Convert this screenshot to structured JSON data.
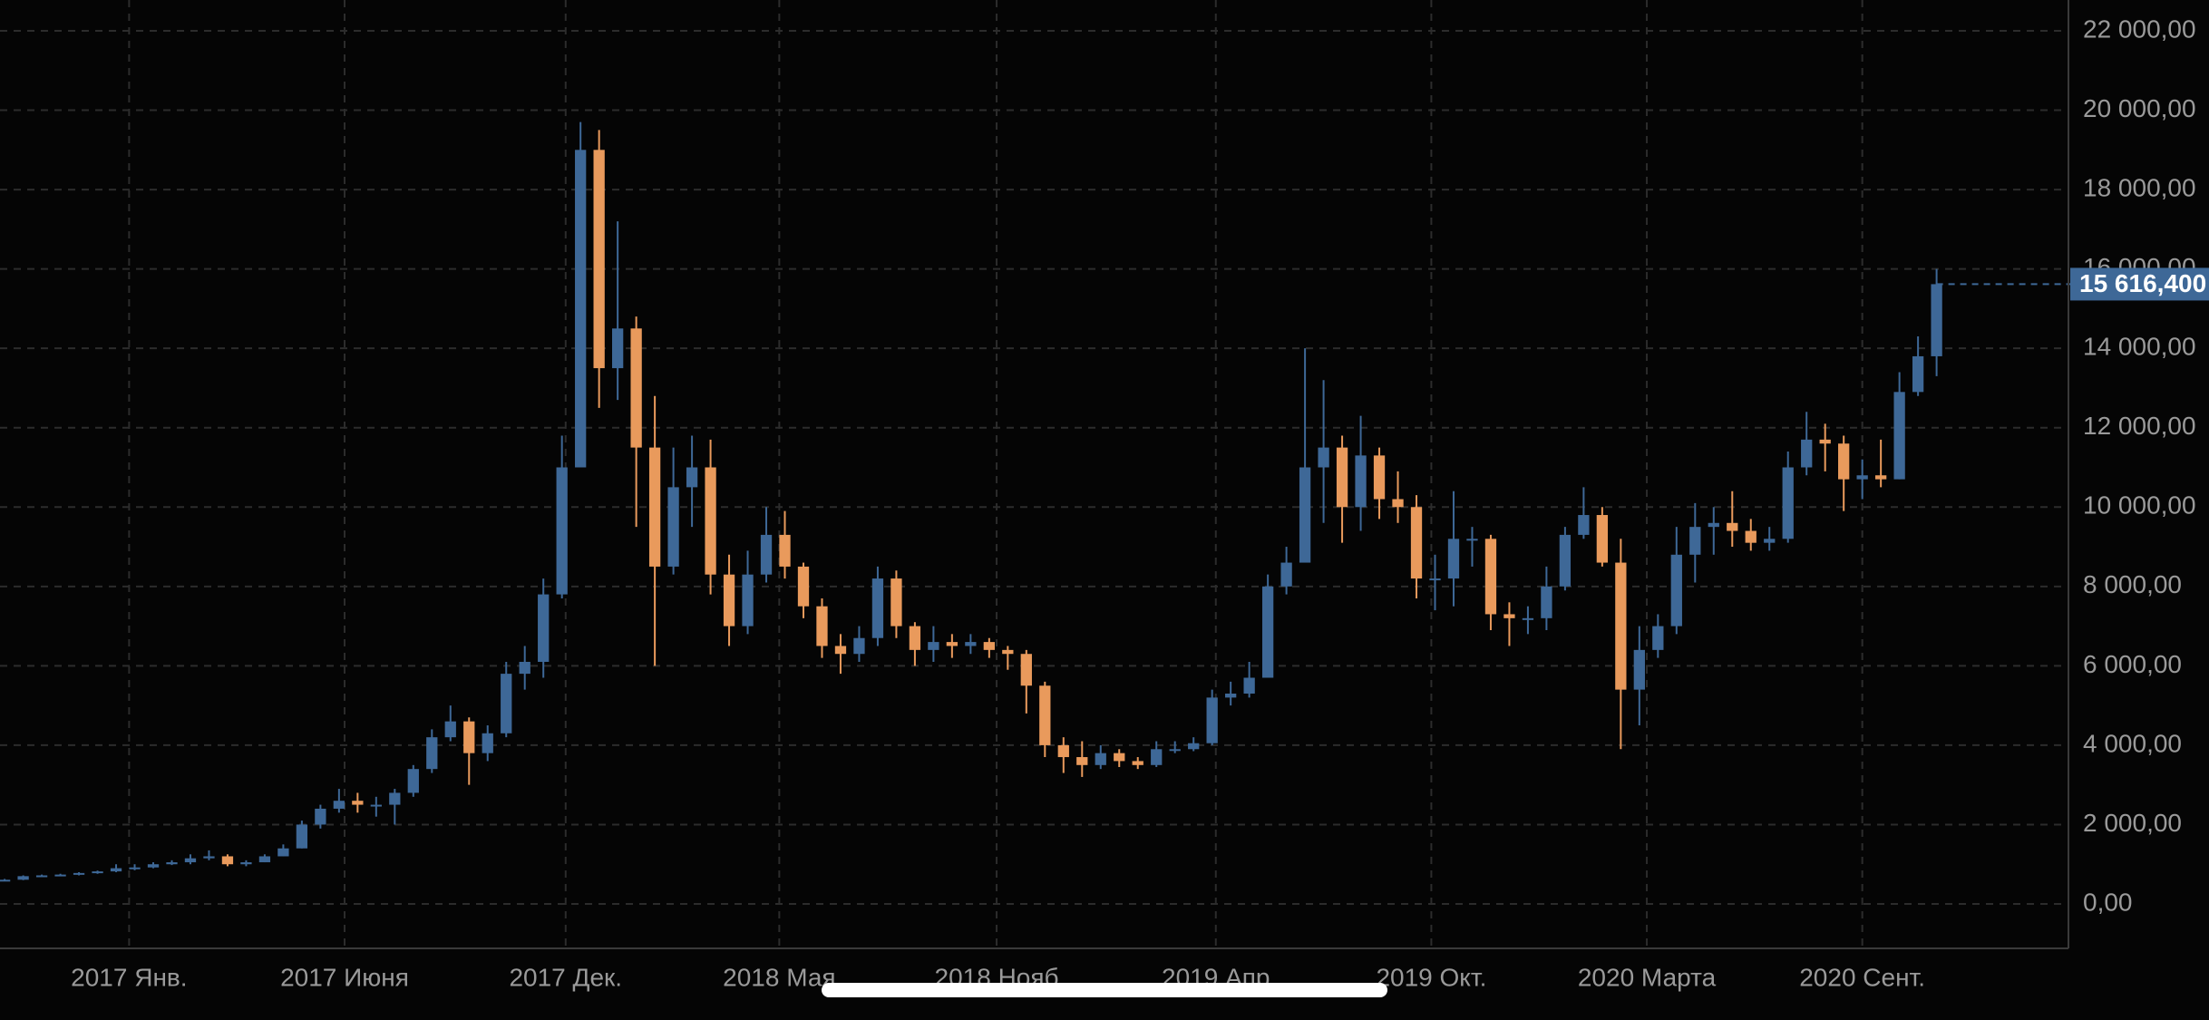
{
  "chart_data": {
    "type": "candlestick",
    "open": [
      590,
      610,
      700,
      720,
      740,
      780,
      820,
      900,
      920,
      1000,
      1050,
      1150,
      1200,
      1000,
      1050,
      1200,
      1400,
      2000,
      2400,
      2600,
      2500,
      2500,
      2800,
      3400,
      4200,
      4600,
      3800,
      4300,
      5800,
      6100,
      7800,
      11000,
      19000,
      13500,
      14500,
      11500,
      8500,
      10500,
      11000,
      8300,
      7000,
      8300,
      9300,
      8500,
      7500,
      6500,
      6300,
      6700,
      8200,
      7000,
      6400,
      6600,
      6500,
      6600,
      6400,
      6300,
      5500,
      4000,
      3700,
      3500,
      3800,
      3600,
      3500,
      3900,
      3900,
      4050,
      5200,
      5300,
      5700,
      8000,
      8600,
      11000,
      11500,
      10000,
      11300,
      10200,
      10000,
      8200,
      8200,
      9200,
      9200,
      7300,
      7200,
      7200,
      8000,
      9300,
      9800,
      8600,
      5400,
      6400,
      7000,
      8800,
      9500,
      9600,
      9400,
      9100,
      9200,
      11000,
      11700,
      11600,
      10700,
      10800,
      10700,
      12900,
      13800
    ],
    "high": [
      630,
      720,
      740,
      760,
      800,
      840,
      1000,
      1000,
      1050,
      1100,
      1250,
      1350,
      1250,
      1100,
      1250,
      1500,
      2100,
      2500,
      2900,
      2800,
      2700,
      2900,
      3500,
      4400,
      5000,
      4700,
      4500,
      6100,
      6500,
      8200,
      11800,
      19700,
      19500,
      17200,
      14800,
      12800,
      11500,
      11800,
      11700,
      8800,
      8900,
      10000,
      9900,
      8600,
      7700,
      6800,
      7000,
      8500,
      8400,
      7100,
      7000,
      6800,
      6800,
      6700,
      6500,
      6400,
      5600,
      4200,
      4100,
      4000,
      3900,
      3700,
      4100,
      4100,
      4200,
      5400,
      5600,
      6100,
      8300,
      9000,
      14000,
      13200,
      11800,
      12300,
      11500,
      10900,
      10300,
      8800,
      10400,
      9500,
      9300,
      7600,
      7500,
      8500,
      9500,
      10500,
      10000,
      9200,
      7000,
      7300,
      9500,
      10100,
      10000,
      10400,
      9700,
      9500,
      11400,
      12400,
      12100,
      11800,
      11200,
      11700,
      13400,
      14300,
      16000
    ],
    "low": [
      580,
      600,
      690,
      700,
      720,
      760,
      800,
      850,
      900,
      980,
      1000,
      1100,
      950,
      950,
      1050,
      1200,
      1400,
      1900,
      2300,
      2300,
      2200,
      2000,
      2700,
      3300,
      4100,
      3000,
      3600,
      4200,
      5400,
      5700,
      7700,
      11000,
      12500,
      12700,
      9500,
      6000,
      8300,
      9500,
      7800,
      6500,
      6800,
      8100,
      8200,
      7200,
      6200,
      5800,
      6100,
      6500,
      6700,
      6000,
      6100,
      6200,
      6300,
      6200,
      5900,
      4800,
      3700,
      3300,
      3200,
      3400,
      3450,
      3400,
      3450,
      3800,
      3850,
      4000,
      5000,
      5200,
      5700,
      7800,
      8600,
      9600,
      9100,
      9400,
      9700,
      9600,
      7700,
      7400,
      7500,
      8500,
      6900,
      6500,
      6800,
      6900,
      7900,
      9200,
      8500,
      3900,
      4500,
      6200,
      6800,
      8100,
      8800,
      9000,
      8900,
      8900,
      9100,
      10800,
      10900,
      9900,
      10200,
      10500,
      10700,
      12800,
      13300
    ],
    "close": [
      610,
      700,
      720,
      740,
      780,
      820,
      900,
      920,
      1000,
      1050,
      1150,
      1200,
      1000,
      1050,
      1200,
      1400,
      2000,
      2400,
      2600,
      2500,
      2500,
      2800,
      3400,
      4200,
      4600,
      3800,
      4300,
      5800,
      6100,
      7800,
      11000,
      19000,
      13500,
      14500,
      11500,
      8500,
      10500,
      11000,
      8300,
      7000,
      8300,
      9300,
      8500,
      7500,
      6500,
      6300,
      6700,
      8200,
      7000,
      6400,
      6600,
      6500,
      6600,
      6400,
      6300,
      5500,
      4000,
      3700,
      3500,
      3800,
      3600,
      3500,
      3900,
      3900,
      4050,
      5200,
      5300,
      5700,
      8000,
      8600,
      11000,
      11500,
      10000,
      11300,
      10200,
      10000,
      8200,
      8200,
      9200,
      9200,
      7300,
      7200,
      7200,
      8000,
      9300,
      9800,
      8600,
      5400,
      6400,
      7000,
      8800,
      9500,
      9600,
      9400,
      9100,
      9200,
      11000,
      11700,
      11600,
      10700,
      10800,
      10700,
      12900,
      13800,
      15616.4
    ],
    "up_color": "#3e6897",
    "down_color": "#e99a5c",
    "last_price": {
      "value": 15616.4,
      "label": "15 616,400"
    },
    "xlim": [
      -0.25,
      111
    ],
    "xticks": [
      {
        "value": 6.7,
        "label": "2017 Янв."
      },
      {
        "value": 18.3,
        "label": "2017 Июня"
      },
      {
        "value": 30.2,
        "label": "2017 Дек."
      },
      {
        "value": 41.7,
        "label": "2018 Мая"
      },
      {
        "value": 53.4,
        "label": "2018 Нояб"
      },
      {
        "value": 65.2,
        "label": "2019 Апр"
      },
      {
        "value": 76.8,
        "label": "2019 Окт."
      },
      {
        "value": 88.4,
        "label": "2020 Марта"
      },
      {
        "value": 100,
        "label": "2020 Сент."
      }
    ],
    "ylim": [
      0,
      22000
    ],
    "yticks": [
      {
        "value": 0,
        "label": "0,00"
      },
      {
        "value": 2000,
        "label": "2 000,00"
      },
      {
        "value": 4000,
        "label": "4 000,00"
      },
      {
        "value": 6000,
        "label": "6 000,00"
      },
      {
        "value": 8000,
        "label": "8 000,00"
      },
      {
        "value": 10000,
        "label": "10 000,00"
      },
      {
        "value": 12000,
        "label": "12 000,00"
      },
      {
        "value": 14000,
        "label": "14 000,00"
      },
      {
        "value": 16000,
        "label": "16 000,00"
      },
      {
        "value": 18000,
        "label": "18 000,00"
      },
      {
        "value": 20000,
        "label": "20 000,00"
      },
      {
        "value": 22000,
        "label": "22 000,00"
      }
    ],
    "grid": true
  }
}
